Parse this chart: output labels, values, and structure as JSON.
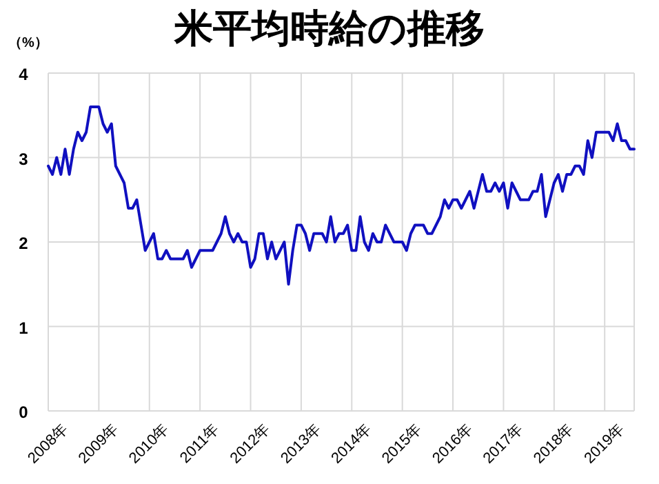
{
  "chart_data": {
    "type": "line",
    "title": "米平均時給の推移",
    "ylabel": "（%）",
    "categories": [
      "2008年",
      null,
      null,
      null,
      null,
      null,
      null,
      null,
      null,
      null,
      null,
      null,
      "2009年",
      null,
      null,
      null,
      null,
      null,
      null,
      null,
      null,
      null,
      null,
      null,
      "2010年",
      null,
      null,
      null,
      null,
      null,
      null,
      null,
      null,
      null,
      null,
      null,
      "2011年",
      null,
      null,
      null,
      null,
      null,
      null,
      null,
      null,
      null,
      null,
      null,
      "2012年",
      null,
      null,
      null,
      null,
      null,
      null,
      null,
      null,
      null,
      null,
      null,
      "2013年",
      null,
      null,
      null,
      null,
      null,
      null,
      null,
      null,
      null,
      null,
      null,
      "2014年",
      null,
      null,
      null,
      null,
      null,
      null,
      null,
      null,
      null,
      null,
      null,
      "2015年",
      null,
      null,
      null,
      null,
      null,
      null,
      null,
      null,
      null,
      null,
      null,
      "2016年",
      null,
      null,
      null,
      null,
      null,
      null,
      null,
      null,
      null,
      null,
      null,
      "2017年",
      null,
      null,
      null,
      null,
      null,
      null,
      null,
      null,
      null,
      null,
      null,
      "2018年",
      null,
      null,
      null,
      null,
      null,
      null,
      null,
      null,
      null,
      null,
      null,
      "2019年",
      null,
      null,
      null,
      null,
      null,
      null,
      null
    ],
    "series": [
      {
        "color": "#1010c0",
        "values": [
          2.9,
          2.8,
          3.0,
          2.8,
          3.1,
          2.8,
          3.1,
          3.3,
          3.2,
          3.3,
          3.6,
          3.6,
          3.6,
          3.4,
          3.3,
          3.4,
          2.9,
          2.8,
          2.7,
          2.4,
          2.4,
          2.5,
          2.2,
          1.9,
          2.0,
          2.1,
          1.8,
          1.8,
          1.9,
          1.8,
          1.8,
          1.8,
          1.8,
          1.9,
          1.7,
          1.8,
          1.9,
          1.9,
          1.9,
          1.9,
          2.0,
          2.1,
          2.3,
          2.1,
          2.0,
          2.1,
          2.0,
          2.0,
          1.7,
          1.8,
          2.1,
          2.1,
          1.8,
          2.0,
          1.8,
          1.9,
          2.0,
          1.5,
          1.9,
          2.2,
          2.2,
          2.1,
          1.9,
          2.1,
          2.1,
          2.1,
          2.0,
          2.3,
          2.0,
          2.1,
          2.1,
          2.2,
          1.9,
          1.9,
          2.3,
          2.0,
          1.9,
          2.1,
          2.0,
          2.0,
          2.2,
          2.1,
          2.0,
          2.0,
          2.0,
          1.9,
          2.1,
          2.2,
          2.2,
          2.2,
          2.1,
          2.1,
          2.2,
          2.3,
          2.5,
          2.4,
          2.5,
          2.5,
          2.4,
          2.5,
          2.6,
          2.4,
          2.6,
          2.8,
          2.6,
          2.6,
          2.7,
          2.6,
          2.7,
          2.4,
          2.7,
          2.6,
          2.5,
          2.5,
          2.5,
          2.6,
          2.6,
          2.8,
          2.3,
          2.5,
          2.7,
          2.8,
          2.6,
          2.8,
          2.8,
          2.9,
          2.9,
          2.8,
          3.2,
          3.0,
          3.3,
          3.3,
          3.3,
          3.3,
          3.2,
          3.4,
          3.2,
          3.2,
          3.1,
          3.1
        ]
      }
    ],
    "ylim": [
      0,
      4
    ],
    "yticks": [
      0,
      1,
      2,
      3,
      4
    ],
    "grid": true,
    "marker": "none",
    "line_style": "solid"
  }
}
